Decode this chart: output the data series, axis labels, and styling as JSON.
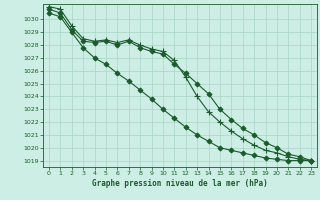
{
  "title": "Graphe pression niveau de la mer (hPa)",
  "background_color": "#cceee4",
  "grid_color": "#aad4c8",
  "line_color": "#1a5c2a",
  "xlim": [
    -0.5,
    23.5
  ],
  "ylim": [
    1018.5,
    1031.2
  ],
  "yticks": [
    1019,
    1020,
    1021,
    1022,
    1023,
    1024,
    1025,
    1026,
    1027,
    1028,
    1029,
    1030
  ],
  "xticks": [
    0,
    1,
    2,
    3,
    4,
    5,
    6,
    7,
    8,
    9,
    10,
    11,
    12,
    13,
    14,
    15,
    16,
    17,
    18,
    19,
    20,
    21,
    22,
    23
  ],
  "series": [
    {
      "x": [
        0,
        1,
        2,
        3,
        4,
        5,
        6,
        7,
        8,
        9,
        10,
        11,
        12,
        13,
        14,
        15,
        16,
        17,
        18,
        19,
        20,
        21,
        22,
        23
      ],
      "y": [
        1030.8,
        1030.5,
        1029.2,
        1028.3,
        1028.2,
        1028.3,
        1028.0,
        1028.3,
        1027.8,
        1027.5,
        1027.3,
        1026.5,
        1025.8,
        1025.0,
        1024.2,
        1023.0,
        1022.2,
        1021.5,
        1021.0,
        1020.4,
        1020.0,
        1019.5,
        1019.3,
        1019.0
      ],
      "marker": "D",
      "markersize": 2.5
    },
    {
      "x": [
        0,
        1,
        2,
        3,
        4,
        5,
        6,
        7,
        8,
        9,
        10,
        11,
        12,
        13,
        14,
        15,
        16,
        17,
        18,
        19,
        20,
        21,
        22,
        23
      ],
      "y": [
        1031.0,
        1030.8,
        1029.5,
        1028.5,
        1028.3,
        1028.4,
        1028.2,
        1028.4,
        1028.0,
        1027.7,
        1027.5,
        1026.8,
        1025.5,
        1024.0,
        1022.8,
        1022.0,
        1021.3,
        1020.7,
        1020.2,
        1019.8,
        1019.6,
        1019.3,
        1019.1,
        1019.0
      ],
      "marker": "+",
      "markersize": 4.0
    },
    {
      "x": [
        0,
        1,
        2,
        3,
        4,
        5,
        6,
        7,
        8,
        9,
        10,
        11,
        12,
        13,
        14,
        15,
        16,
        17,
        18,
        19,
        20,
        21,
        22,
        23
      ],
      "y": [
        1030.5,
        1030.2,
        1029.0,
        1027.8,
        1027.0,
        1026.5,
        1025.8,
        1025.2,
        1024.5,
        1023.8,
        1023.0,
        1022.3,
        1021.6,
        1021.0,
        1020.5,
        1020.0,
        1019.8,
        1019.6,
        1019.4,
        1019.2,
        1019.1,
        1019.0,
        1019.0,
        1019.0
      ],
      "marker": "D",
      "markersize": 2.5
    }
  ],
  "figsize": [
    3.2,
    2.0
  ],
  "dpi": 100
}
